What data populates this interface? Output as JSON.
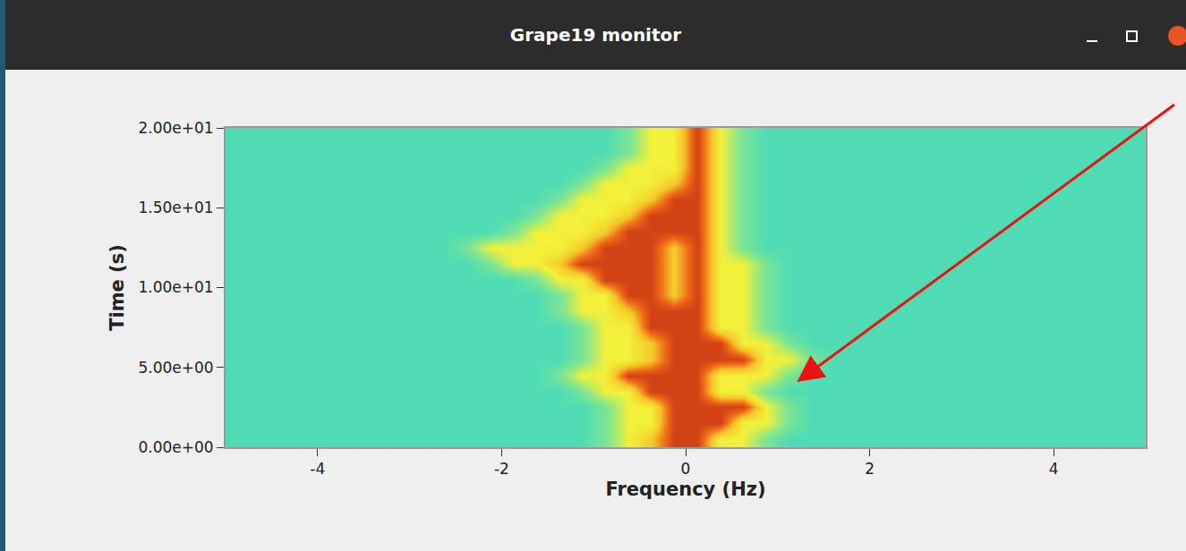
{
  "chart_data": {
    "type": "heatmap",
    "title": "Grape19 monitor",
    "x_label": "Frequency (Hz)",
    "y_label": "Time (s)",
    "grid": false,
    "xlim": [
      -5,
      5
    ],
    "ylim": [
      0,
      20
    ],
    "xticks": [
      -4,
      -2,
      0,
      2,
      4
    ],
    "yticks": [
      {
        "value": 0,
        "label": "0.00e+00"
      },
      {
        "value": 5,
        "label": "5.00e+00"
      },
      {
        "value": 10,
        "label": "1.00e+01"
      },
      {
        "value": 15,
        "label": "1.50e+01"
      },
      {
        "value": 20,
        "label": "2.00e+01"
      }
    ],
    "zlim": [
      0,
      10
    ],
    "x": [
      -4.875,
      -4.625,
      -4.375,
      -4.125,
      -3.875,
      -3.625,
      -3.375,
      -3.125,
      -2.875,
      -2.625,
      -2.375,
      -2.125,
      -1.875,
      -1.625,
      -1.375,
      -1.125,
      -0.875,
      -0.625,
      -0.375,
      -0.125,
      0.125,
      0.375,
      0.625,
      0.875,
      1.125,
      1.375,
      1.625,
      1.875,
      2.125,
      2.375,
      2.625,
      2.875,
      3.125,
      3.375,
      3.625,
      3.875,
      4.125,
      4.375,
      4.625,
      4.875
    ],
    "y": [
      0.5,
      1.5,
      2.5,
      3.5,
      4.5,
      5.5,
      6.5,
      7.5,
      8.5,
      9.5,
      10.5,
      11.5,
      12.5,
      13.5,
      14.5,
      15.5,
      16.5,
      17.5,
      18.5,
      19.5
    ],
    "cells": [
      [
        3,
        3,
        3,
        3,
        3,
        3,
        3,
        3,
        3,
        3,
        3,
        3,
        3,
        3,
        3,
        3,
        4,
        6,
        7,
        9,
        9,
        6,
        6,
        4,
        3,
        3,
        3,
        3,
        3,
        3,
        3,
        3,
        3,
        3,
        3,
        3,
        3,
        3,
        3,
        3
      ],
      [
        3,
        3,
        3,
        3,
        3,
        3,
        3,
        3,
        3,
        3,
        3,
        3,
        3,
        3,
        3,
        3,
        4,
        6,
        6,
        9,
        9,
        9,
        6,
        6,
        4,
        3,
        3,
        3,
        3,
        3,
        3,
        3,
        3,
        3,
        3,
        3,
        3,
        3,
        3,
        3
      ],
      [
        3,
        3,
        3,
        3,
        3,
        3,
        3,
        3,
        3,
        3,
        3,
        3,
        3,
        3,
        3,
        3,
        4,
        6,
        6,
        9,
        9,
        9,
        9,
        6,
        4,
        3,
        3,
        3,
        3,
        3,
        3,
        3,
        3,
        3,
        3,
        3,
        3,
        3,
        3,
        3
      ],
      [
        3,
        3,
        3,
        3,
        3,
        3,
        3,
        3,
        3,
        3,
        3,
        3,
        3,
        3,
        3,
        4,
        6,
        6,
        9,
        9,
        9,
        6,
        6,
        4,
        3,
        3,
        3,
        3,
        3,
        3,
        3,
        3,
        3,
        3,
        3,
        3,
        3,
        3,
        3,
        3
      ],
      [
        3,
        3,
        3,
        3,
        3,
        3,
        3,
        3,
        3,
        3,
        3,
        3,
        3,
        3,
        4,
        6,
        6,
        9,
        9,
        9,
        9,
        6,
        6,
        6,
        4,
        3,
        3,
        3,
        3,
        3,
        3,
        3,
        3,
        3,
        3,
        3,
        3,
        3,
        3,
        3
      ],
      [
        3,
        3,
        3,
        3,
        3,
        3,
        3,
        3,
        3,
        3,
        3,
        3,
        3,
        3,
        3,
        4,
        6,
        6,
        7,
        9,
        9,
        9,
        9,
        6,
        6,
        4,
        3,
        3,
        3,
        3,
        3,
        3,
        3,
        3,
        3,
        3,
        3,
        3,
        3,
        3
      ],
      [
        3,
        3,
        3,
        3,
        3,
        3,
        3,
        3,
        3,
        3,
        3,
        3,
        3,
        3,
        3,
        4,
        6,
        6,
        7,
        9,
        9,
        9,
        6,
        6,
        4,
        3,
        3,
        3,
        3,
        3,
        3,
        3,
        3,
        3,
        3,
        3,
        3,
        3,
        3,
        3
      ],
      [
        3,
        3,
        3,
        3,
        3,
        3,
        3,
        3,
        3,
        3,
        3,
        3,
        3,
        3,
        3,
        4,
        6,
        6,
        9,
        9,
        9,
        6,
        6,
        4,
        3,
        3,
        3,
        3,
        3,
        3,
        3,
        3,
        3,
        3,
        3,
        3,
        3,
        3,
        3,
        3
      ],
      [
        3,
        3,
        3,
        3,
        3,
        3,
        3,
        3,
        3,
        3,
        3,
        3,
        3,
        3,
        4,
        6,
        6,
        7,
        9,
        9,
        9,
        6,
        6,
        4,
        3,
        3,
        3,
        3,
        3,
        3,
        3,
        3,
        3,
        3,
        3,
        3,
        3,
        3,
        3,
        3
      ],
      [
        3,
        3,
        3,
        3,
        3,
        3,
        3,
        3,
        3,
        3,
        3,
        3,
        3,
        3,
        4,
        6,
        6,
        9,
        9,
        7,
        9,
        6,
        6,
        4,
        3,
        3,
        3,
        3,
        3,
        3,
        3,
        3,
        3,
        3,
        3,
        3,
        3,
        3,
        3,
        3
      ],
      [
        3,
        3,
        3,
        3,
        3,
        3,
        3,
        3,
        3,
        3,
        3,
        3,
        3,
        4,
        6,
        6,
        9,
        9,
        9,
        7,
        9,
        6,
        6,
        4,
        3,
        3,
        3,
        3,
        3,
        3,
        3,
        3,
        3,
        3,
        3,
        3,
        3,
        3,
        3,
        3
      ],
      [
        3,
        3,
        3,
        3,
        3,
        3,
        3,
        3,
        3,
        3,
        3,
        4,
        6,
        6,
        7,
        9,
        9,
        9,
        9,
        7,
        9,
        6,
        6,
        4,
        3,
        3,
        3,
        3,
        3,
        3,
        3,
        3,
        3,
        3,
        3,
        3,
        3,
        3,
        3,
        3
      ],
      [
        3,
        3,
        3,
        3,
        3,
        3,
        3,
        3,
        3,
        3,
        4,
        6,
        6,
        6,
        6,
        7,
        9,
        9,
        9,
        7,
        9,
        6,
        4,
        3,
        3,
        3,
        3,
        3,
        3,
        3,
        3,
        3,
        3,
        3,
        3,
        3,
        3,
        3,
        3,
        3
      ],
      [
        3,
        3,
        3,
        3,
        3,
        3,
        3,
        3,
        3,
        3,
        3,
        3,
        4,
        6,
        6,
        6,
        7,
        9,
        9,
        9,
        9,
        6,
        4,
        3,
        3,
        3,
        3,
        3,
        3,
        3,
        3,
        3,
        3,
        3,
        3,
        3,
        3,
        3,
        3,
        3
      ],
      [
        3,
        3,
        3,
        3,
        3,
        3,
        3,
        3,
        3,
        3,
        3,
        3,
        3,
        4,
        6,
        6,
        6,
        7,
        9,
        9,
        9,
        6,
        4,
        3,
        3,
        3,
        3,
        3,
        3,
        3,
        3,
        3,
        3,
        3,
        3,
        3,
        3,
        3,
        3,
        3
      ],
      [
        3,
        3,
        3,
        3,
        3,
        3,
        3,
        3,
        3,
        3,
        3,
        3,
        3,
        3,
        4,
        6,
        6,
        6,
        7,
        9,
        9,
        6,
        4,
        3,
        3,
        3,
        3,
        3,
        3,
        3,
        3,
        3,
        3,
        3,
        3,
        3,
        3,
        3,
        3,
        3
      ],
      [
        3,
        3,
        3,
        3,
        3,
        3,
        3,
        3,
        3,
        3,
        3,
        3,
        3,
        3,
        3,
        4,
        6,
        6,
        6,
        7,
        9,
        6,
        4,
        3,
        3,
        3,
        3,
        3,
        3,
        3,
        3,
        3,
        3,
        3,
        3,
        3,
        3,
        3,
        3,
        3
      ],
      [
        3,
        3,
        3,
        3,
        3,
        3,
        3,
        3,
        3,
        3,
        3,
        3,
        3,
        3,
        3,
        3,
        4,
        6,
        6,
        6,
        9,
        6,
        4,
        3,
        3,
        3,
        3,
        3,
        3,
        3,
        3,
        3,
        3,
        3,
        3,
        3,
        3,
        3,
        3,
        3
      ],
      [
        3,
        3,
        3,
        3,
        3,
        3,
        3,
        3,
        3,
        3,
        3,
        3,
        3,
        3,
        3,
        3,
        3,
        4,
        6,
        6,
        9,
        6,
        4,
        3,
        3,
        3,
        3,
        3,
        3,
        3,
        3,
        3,
        3,
        3,
        3,
        3,
        3,
        3,
        3,
        3
      ],
      [
        3,
        3,
        3,
        3,
        3,
        3,
        3,
        3,
        3,
        3,
        3,
        3,
        3,
        3,
        3,
        3,
        3,
        4,
        6,
        6,
        9,
        6,
        4,
        3,
        3,
        3,
        3,
        3,
        3,
        3,
        3,
        3,
        3,
        3,
        3,
        3,
        3,
        3,
        3,
        3
      ]
    ]
  }
}
